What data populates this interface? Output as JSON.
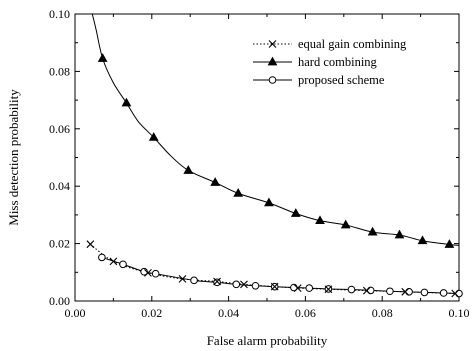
{
  "chart_data": {
    "type": "line",
    "title": "",
    "xlabel": "False alarm probability",
    "ylabel": "Miss detection probability",
    "xlim": [
      0.0,
      0.1
    ],
    "ylim": [
      0.0,
      0.1
    ],
    "xticks": [
      "0.00",
      "0.02",
      "0.04",
      "0.06",
      "0.08",
      "0.10"
    ],
    "yticks": [
      "0.00",
      "0.02",
      "0.04",
      "0.06",
      "0.08",
      "0.10"
    ],
    "grid": false,
    "legend_position": "top-right",
    "series": [
      {
        "name": "equal gain combining",
        "line_style": "dotted",
        "marker": "x",
        "x": [
          0.004,
          0.01,
          0.019,
          0.028,
          0.037,
          0.044,
          0.052,
          0.058,
          0.066,
          0.076,
          0.086,
          0.099
        ],
        "y": [
          0.0198,
          0.0138,
          0.0098,
          0.0077,
          0.0068,
          0.0058,
          0.005,
          0.0045,
          0.0041,
          0.0036,
          0.0032,
          0.0026
        ]
      },
      {
        "name": "hard combining",
        "line_style": "solid",
        "marker": "filled-triangle",
        "x": [
          0.0072,
          0.0134,
          0.0205,
          0.0295,
          0.0365,
          0.0425,
          0.0505,
          0.0575,
          0.0638,
          0.0705,
          0.0775,
          0.0845,
          0.0905,
          0.0975
        ],
        "y": [
          0.0845,
          0.069,
          0.057,
          0.0455,
          0.0413,
          0.0375,
          0.0342,
          0.0305,
          0.028,
          0.0265,
          0.024,
          0.023,
          0.021,
          0.0197
        ],
        "curve": {
          "x": [
            0.0045,
            0.0055,
            0.0072,
            0.01,
            0.0134,
            0.0165,
            0.0205,
            0.025,
            0.0295,
            0.0365,
            0.0425,
            0.0505,
            0.0575,
            0.0638,
            0.0705,
            0.0775,
            0.0845,
            0.0905,
            0.0975,
            0.1
          ],
          "y": [
            0.1,
            0.0945,
            0.0845,
            0.076,
            0.069,
            0.0625,
            0.057,
            0.0505,
            0.0455,
            0.0413,
            0.0375,
            0.0342,
            0.0305,
            0.028,
            0.0265,
            0.024,
            0.023,
            0.021,
            0.0197,
            0.0194
          ]
        }
      },
      {
        "name": "proposed scheme",
        "line_style": "solid",
        "marker": "open-circle",
        "x": [
          0.007,
          0.0125,
          0.018,
          0.021,
          0.031,
          0.037,
          0.042,
          0.047,
          0.052,
          0.057,
          0.061,
          0.066,
          0.072,
          0.077,
          0.082,
          0.087,
          0.091,
          0.096,
          0.1
        ],
        "y": [
          0.0152,
          0.0128,
          0.0102,
          0.0095,
          0.0072,
          0.0065,
          0.0058,
          0.0053,
          0.005,
          0.0047,
          0.0045,
          0.0042,
          0.004,
          0.0037,
          0.0034,
          0.0032,
          0.003,
          0.0028,
          0.0026
        ]
      }
    ]
  }
}
